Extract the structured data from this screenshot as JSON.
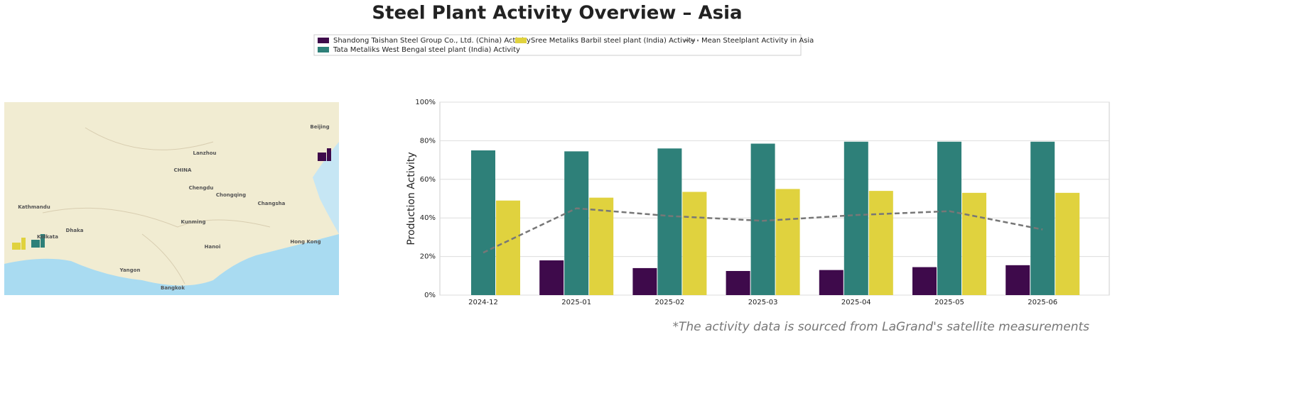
{
  "chart_data": {
    "type": "bar",
    "title": "Steel Plant Activity Overview – Asia",
    "ylabel": "Production Activity",
    "footnote": "*The activity data is sourced from LaGrand's satellite measurements",
    "categories": [
      "2024-12",
      "2025-01",
      "2025-02",
      "2025-03",
      "2025-04",
      "2025-05",
      "2025-06"
    ],
    "series": [
      {
        "name": "Shandong Taishan Steel Group Co., Ltd. (China) Activity",
        "color": "#3e0a4b",
        "values": [
          null,
          18,
          14,
          12.5,
          13,
          14.5,
          15.5
        ]
      },
      {
        "name": "Tata Metaliks West Bengal steel plant (India) Activity",
        "color": "#2e8079",
        "values": [
          75,
          74.5,
          76,
          78.5,
          79.5,
          79.5,
          79.5
        ]
      },
      {
        "name": "Sree Metaliks Barbil steel plant (India) Activity",
        "color": "#e0d23e",
        "values": [
          49,
          50.5,
          53.5,
          55,
          54,
          53,
          53
        ]
      },
      {
        "name": "Mean Steelplant Activity in Asia",
        "type": "line",
        "color": "#777777",
        "dashed": true,
        "values": [
          22,
          45,
          41,
          38.5,
          41.5,
          43.5,
          34
        ]
      }
    ],
    "ylim": [
      0,
      100
    ],
    "yticks": [
      {
        "value": 0,
        "label": "0%"
      },
      {
        "value": 20,
        "label": "20%"
      },
      {
        "value": 40,
        "label": "40%"
      },
      {
        "value": 60,
        "label": "60%"
      },
      {
        "value": 80,
        "label": "80%"
      },
      {
        "value": 100,
        "label": "100%"
      }
    ],
    "grid": true,
    "legend": "top",
    "map_labels": [
      "CHINA",
      "Beijing",
      "Lanzhou",
      "Chengdu",
      "Chongqing",
      "Kunming",
      "Kolkata",
      "Dhaka",
      "Hong Kong",
      "Hanoi",
      "Yangon",
      "Bangkok",
      "Kathmandu",
      "Changsha"
    ]
  }
}
